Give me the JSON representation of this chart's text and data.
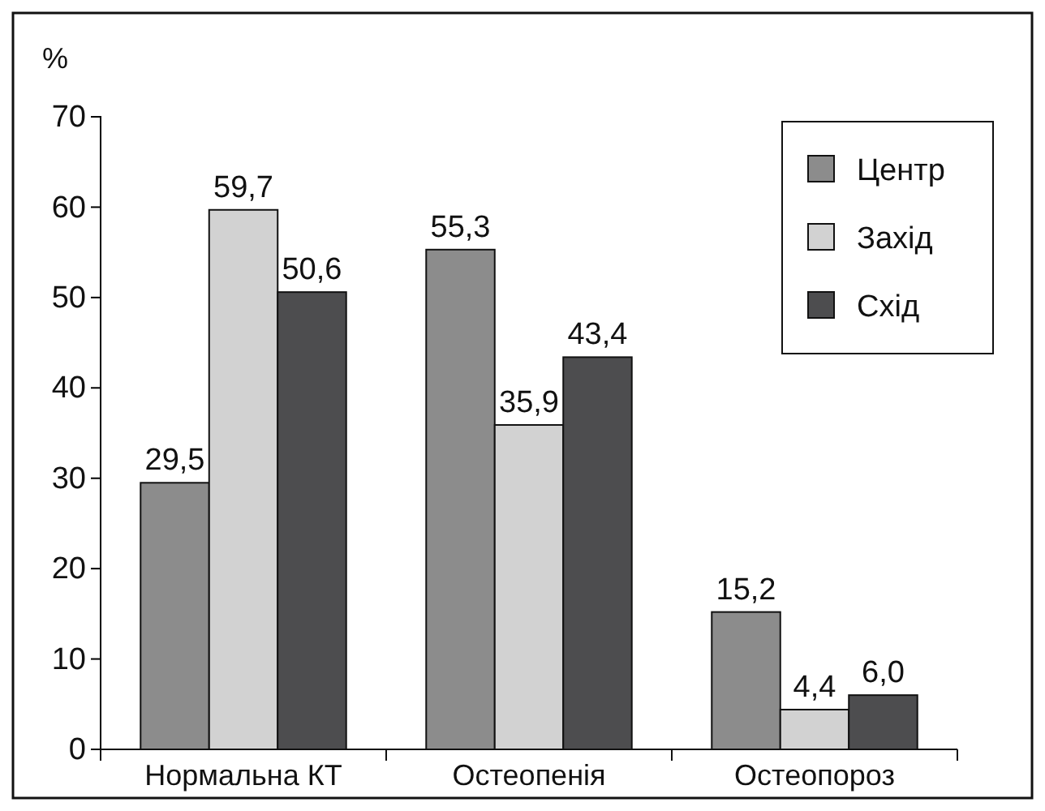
{
  "chart_data": {
    "type": "bar",
    "ylabel": "%",
    "categories": [
      "Нормальна КТ",
      "Остеопенія",
      "Остеопороз"
    ],
    "series": [
      {
        "name": "Центр",
        "color": "#8c8c8c",
        "values": [
          29.5,
          55.3,
          15.2
        ],
        "value_labels": [
          "29,5",
          "55,3",
          "15,2"
        ]
      },
      {
        "name": "Захід",
        "color": "#d2d2d2",
        "values": [
          59.7,
          35.9,
          4.4
        ],
        "value_labels": [
          "59,7",
          "35,9",
          "4,4"
        ]
      },
      {
        "name": "Схід",
        "color": "#4d4d4f",
        "values": [
          50.6,
          43.4,
          6.0
        ],
        "value_labels": [
          "50,6",
          "43,4",
          "6,0"
        ]
      }
    ],
    "ylim": [
      0,
      70
    ],
    "yticks": [
      0,
      10,
      20,
      30,
      40,
      50,
      60,
      70
    ],
    "grid": false,
    "legend": "top right"
  }
}
